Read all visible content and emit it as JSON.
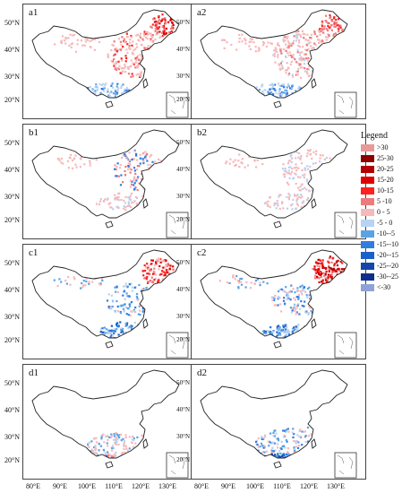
{
  "panels": [
    {
      "label": "a1",
      "pattern": "a1"
    },
    {
      "label": "a2",
      "pattern": "a2"
    },
    {
      "label": "b1",
      "pattern": "b1"
    },
    {
      "label": "b2",
      "pattern": "b2"
    },
    {
      "label": "c1",
      "pattern": "c1"
    },
    {
      "label": "c2",
      "pattern": "c2"
    },
    {
      "label": "d1",
      "pattern": "d1"
    },
    {
      "label": "d2",
      "pattern": "d2"
    }
  ],
  "lat_labels": [
    "50°N",
    "40°N",
    "30°N",
    "20°N"
  ],
  "lon_labels": [
    "80°E",
    "90°E",
    "100°E",
    "110°E",
    "120°E",
    "130°E"
  ],
  "legend": {
    "title": "Legend",
    "items": [
      {
        "label": ">30",
        "color": "#e79a9a"
      },
      {
        "label": "25-30",
        "color": "#8b0000"
      },
      {
        "label": "20-25",
        "color": "#b20000"
      },
      {
        "label": "15-20",
        "color": "#e00000"
      },
      {
        "label": "10-15",
        "color": "#ff2020"
      },
      {
        "label": "5 -10",
        "color": "#ee7b7b"
      },
      {
        "label": "0 - 5",
        "color": "#f7b8b8"
      },
      {
        "label": "-5 - 0",
        "color": "#b9d3f2"
      },
      {
        "label": "-10--5",
        "color": "#5aa2e6"
      },
      {
        "label": "-15--10",
        "color": "#2f7de0"
      },
      {
        "label": "-20--15",
        "color": "#1b5fc8"
      },
      {
        "label": "-25--20",
        "color": "#1446a8"
      },
      {
        "label": "-30--25",
        "color": "#0d2f8a"
      },
      {
        "label": "<-30",
        "color": "#8ea2d6"
      }
    ]
  }
}
